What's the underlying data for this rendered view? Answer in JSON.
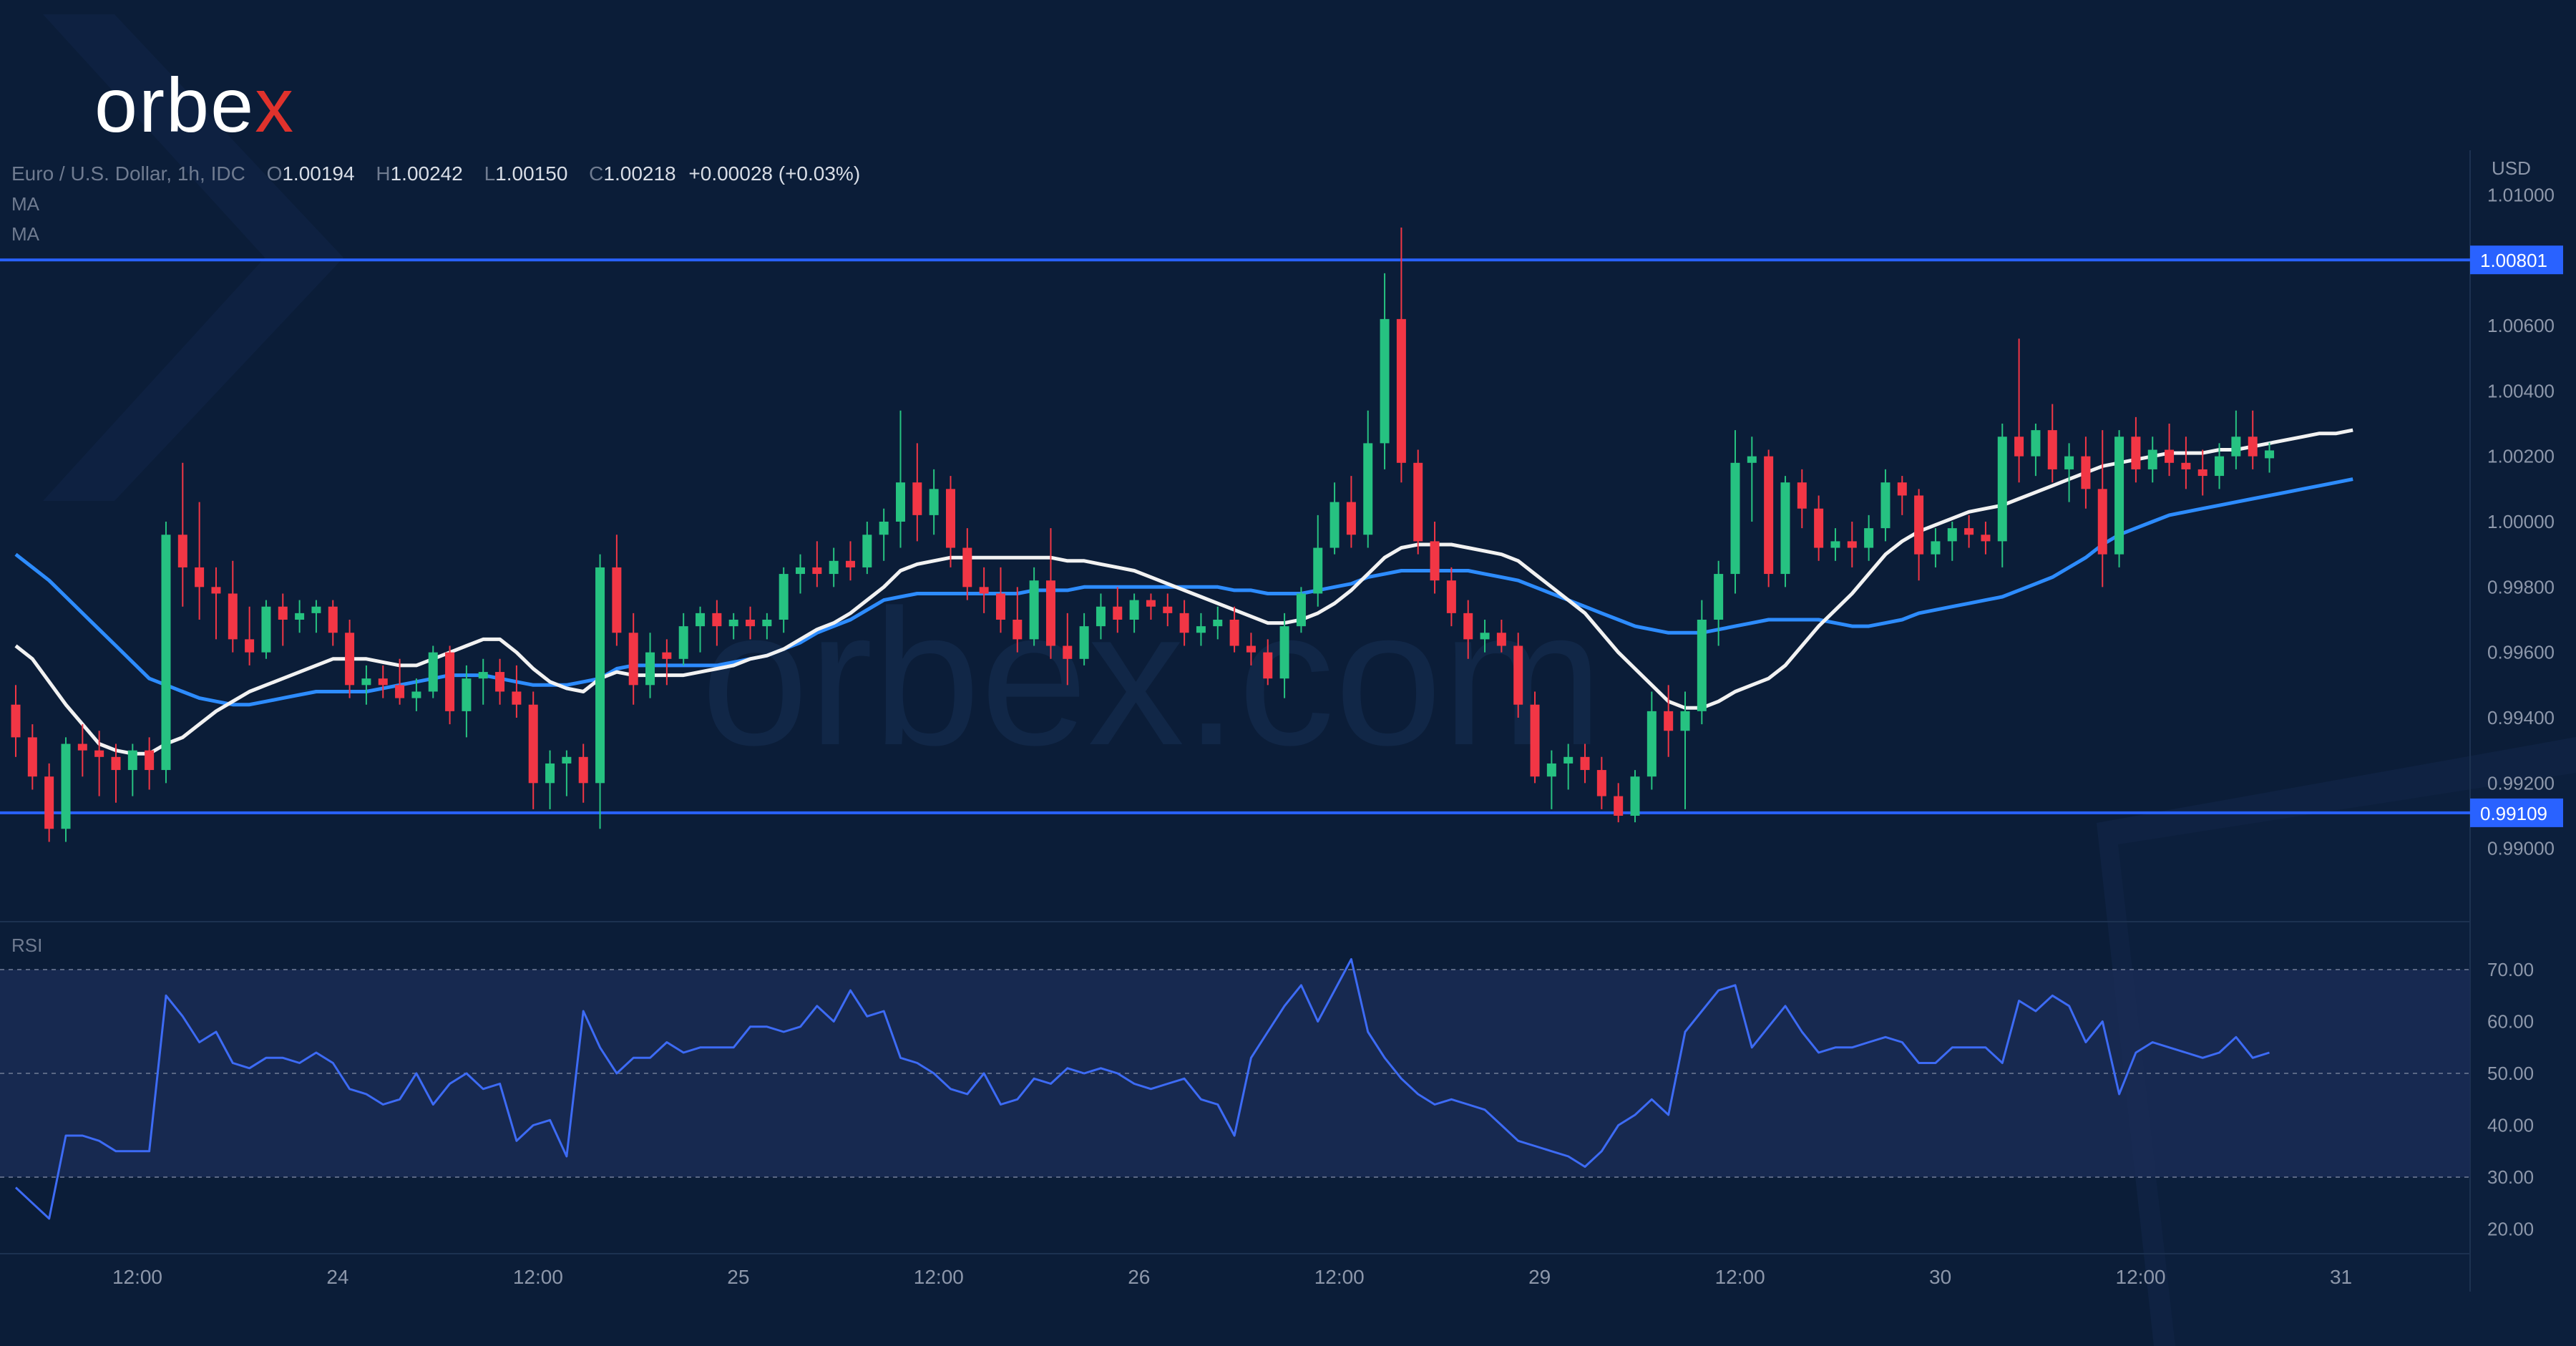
{
  "branding": {
    "logo_text": "orbe",
    "logo_x": "x",
    "accent_color": "#e0322c"
  },
  "legend": {
    "symbol": "Euro / U.S. Dollar, 1h, IDC",
    "o_label": "O",
    "open": "1.00194",
    "h_label": "H",
    "high": "1.00242",
    "l_label": "L",
    "low": "1.00150",
    "c_label": "C",
    "close": "1.00218",
    "change": "+0.00028 (+0.03%)",
    "ma1_label": "MA",
    "ma2_label": "MA"
  },
  "watermark": "orbex.com",
  "chart_data": {
    "type": "candlestick",
    "currency_label": "USD",
    "price_axis": {
      "range": [
        0.9888,
        1.0118
      ],
      "ticks": [
        "1.01000",
        "1.00600",
        "1.00400",
        "1.00200",
        "1.00000",
        "0.99800",
        "0.99600",
        "0.99400",
        "0.99200",
        "0.99000"
      ],
      "tick_values": [
        1.01,
        1.006,
        1.004,
        1.002,
        1.0,
        0.998,
        0.996,
        0.994,
        0.992,
        0.99
      ]
    },
    "horizontal_levels": [
      {
        "label": "1.00801",
        "value": 1.00801,
        "color": "#2962ff"
      },
      {
        "label": "0.99109",
        "value": 0.99109,
        "color": "#2962ff"
      }
    ],
    "time_axis": {
      "labels": [
        "12:00",
        "24",
        "12:00",
        "25",
        "12:00",
        "26",
        "12:00",
        "29",
        "12:00",
        "30",
        "12:00",
        "31"
      ],
      "label_candle_index": [
        6,
        18,
        30,
        42,
        54,
        66,
        78,
        90,
        102,
        114,
        126,
        138
      ]
    },
    "up_color": "#26c281",
    "down_color": "#f23645",
    "candles": [
      [
        0.9944,
        0.995,
        0.9928,
        0.9934
      ],
      [
        0.9934,
        0.9938,
        0.9918,
        0.9922
      ],
      [
        0.9922,
        0.9926,
        0.9902,
        0.9906
      ],
      [
        0.9906,
        0.9934,
        0.9902,
        0.9932
      ],
      [
        0.9932,
        0.9938,
        0.9922,
        0.993
      ],
      [
        0.993,
        0.9936,
        0.9916,
        0.9928
      ],
      [
        0.9928,
        0.9932,
        0.9914,
        0.9924
      ],
      [
        0.9924,
        0.9932,
        0.9916,
        0.993
      ],
      [
        0.993,
        0.9934,
        0.9918,
        0.9924
      ],
      [
        0.9924,
        1.0,
        0.992,
        0.9996
      ],
      [
        0.9996,
        1.0018,
        0.9974,
        0.9986
      ],
      [
        0.9986,
        1.0006,
        0.997,
        0.998
      ],
      [
        0.998,
        0.9986,
        0.9964,
        0.9978
      ],
      [
        0.9978,
        0.9988,
        0.996,
        0.9964
      ],
      [
        0.9964,
        0.9974,
        0.9956,
        0.996
      ],
      [
        0.996,
        0.9976,
        0.9958,
        0.9974
      ],
      [
        0.9974,
        0.9978,
        0.9962,
        0.997
      ],
      [
        0.997,
        0.9976,
        0.9966,
        0.9972
      ],
      [
        0.9972,
        0.9976,
        0.9966,
        0.9974
      ],
      [
        0.9974,
        0.9976,
        0.9962,
        0.9966
      ],
      [
        0.9966,
        0.997,
        0.9946,
        0.995
      ],
      [
        0.995,
        0.9956,
        0.9944,
        0.9952
      ],
      [
        0.9952,
        0.9956,
        0.9946,
        0.995
      ],
      [
        0.995,
        0.9958,
        0.9944,
        0.9946
      ],
      [
        0.9946,
        0.9952,
        0.9942,
        0.9948
      ],
      [
        0.9948,
        0.9962,
        0.9946,
        0.996
      ],
      [
        0.996,
        0.9962,
        0.9938,
        0.9942
      ],
      [
        0.9942,
        0.9956,
        0.9934,
        0.9952
      ],
      [
        0.9952,
        0.9958,
        0.9944,
        0.9954
      ],
      [
        0.9954,
        0.9958,
        0.9944,
        0.9948
      ],
      [
        0.9948,
        0.9956,
        0.994,
        0.9944
      ],
      [
        0.9944,
        0.9948,
        0.9912,
        0.992
      ],
      [
        0.992,
        0.993,
        0.9912,
        0.9926
      ],
      [
        0.9926,
        0.993,
        0.9916,
        0.9928
      ],
      [
        0.9928,
        0.9932,
        0.9914,
        0.992
      ],
      [
        0.992,
        0.999,
        0.9906,
        0.9986
      ],
      [
        0.9986,
        0.9996,
        0.9962,
        0.9966
      ],
      [
        0.9966,
        0.9972,
        0.9944,
        0.995
      ],
      [
        0.995,
        0.9966,
        0.9946,
        0.996
      ],
      [
        0.996,
        0.9964,
        0.995,
        0.9958
      ],
      [
        0.9958,
        0.9972,
        0.9956,
        0.9968
      ],
      [
        0.9968,
        0.9974,
        0.996,
        0.9972
      ],
      [
        0.9972,
        0.9976,
        0.9962,
        0.9968
      ],
      [
        0.9968,
        0.9972,
        0.9964,
        0.997
      ],
      [
        0.997,
        0.9974,
        0.9964,
        0.9968
      ],
      [
        0.9968,
        0.9972,
        0.9964,
        0.997
      ],
      [
        0.997,
        0.9986,
        0.9966,
        0.9984
      ],
      [
        0.9984,
        0.999,
        0.9978,
        0.9986
      ],
      [
        0.9986,
        0.9994,
        0.998,
        0.9984
      ],
      [
        0.9984,
        0.9992,
        0.998,
        0.9988
      ],
      [
        0.9988,
        0.9994,
        0.9982,
        0.9986
      ],
      [
        0.9986,
        1.0,
        0.9984,
        0.9996
      ],
      [
        0.9996,
        1.0004,
        0.9988,
        1.0
      ],
      [
        1.0,
        1.0034,
        0.9992,
        1.0012
      ],
      [
        1.0012,
        1.0024,
        0.9994,
        1.0002
      ],
      [
        1.0002,
        1.0016,
        0.9996,
        1.001
      ],
      [
        1.001,
        1.0014,
        0.9986,
        0.9992
      ],
      [
        0.9992,
        0.9998,
        0.9976,
        0.998
      ],
      [
        0.998,
        0.9986,
        0.9972,
        0.9978
      ],
      [
        0.9978,
        0.9986,
        0.9966,
        0.997
      ],
      [
        0.997,
        0.998,
        0.996,
        0.9964
      ],
      [
        0.9964,
        0.9986,
        0.9962,
        0.9982
      ],
      [
        0.9982,
        0.9998,
        0.9958,
        0.9962
      ],
      [
        0.9962,
        0.9972,
        0.995,
        0.9958
      ],
      [
        0.9958,
        0.9972,
        0.9956,
        0.9968
      ],
      [
        0.9968,
        0.9978,
        0.9964,
        0.9974
      ],
      [
        0.9974,
        0.998,
        0.9966,
        0.997
      ],
      [
        0.997,
        0.9978,
        0.9966,
        0.9976
      ],
      [
        0.9976,
        0.9978,
        0.997,
        0.9974
      ],
      [
        0.9974,
        0.9978,
        0.9968,
        0.9972
      ],
      [
        0.9972,
        0.9976,
        0.9962,
        0.9966
      ],
      [
        0.9966,
        0.9972,
        0.9962,
        0.9968
      ],
      [
        0.9968,
        0.9974,
        0.9964,
        0.997
      ],
      [
        0.997,
        0.9974,
        0.996,
        0.9962
      ],
      [
        0.9962,
        0.9966,
        0.9956,
        0.996
      ],
      [
        0.996,
        0.9964,
        0.995,
        0.9952
      ],
      [
        0.9952,
        0.9972,
        0.9946,
        0.9968
      ],
      [
        0.9968,
        0.998,
        0.9966,
        0.9978
      ],
      [
        0.9978,
        1.0002,
        0.9974,
        0.9992
      ],
      [
        0.9992,
        1.0012,
        0.999,
        1.0006
      ],
      [
        1.0006,
        1.0014,
        0.9992,
        0.9996
      ],
      [
        0.9996,
        1.0034,
        0.9992,
        1.0024
      ],
      [
        1.0024,
        1.0076,
        1.0016,
        1.0062
      ],
      [
        1.0062,
        1.009,
        1.0012,
        1.0018
      ],
      [
        1.0018,
        1.0022,
        0.999,
        0.9994
      ],
      [
        0.9994,
        1.0,
        0.9978,
        0.9982
      ],
      [
        0.9982,
        0.9986,
        0.9968,
        0.9972
      ],
      [
        0.9972,
        0.9976,
        0.9958,
        0.9964
      ],
      [
        0.9964,
        0.997,
        0.996,
        0.9966
      ],
      [
        0.9966,
        0.997,
        0.996,
        0.9962
      ],
      [
        0.9962,
        0.9966,
        0.994,
        0.9944
      ],
      [
        0.9944,
        0.9948,
        0.992,
        0.9922
      ],
      [
        0.9922,
        0.993,
        0.9912,
        0.9926
      ],
      [
        0.9926,
        0.9932,
        0.9918,
        0.9928
      ],
      [
        0.9928,
        0.9932,
        0.992,
        0.9924
      ],
      [
        0.9924,
        0.9928,
        0.9912,
        0.9916
      ],
      [
        0.9916,
        0.992,
        0.9908,
        0.991
      ],
      [
        0.991,
        0.9924,
        0.9908,
        0.9922
      ],
      [
        0.9922,
        0.9948,
        0.9918,
        0.9942
      ],
      [
        0.9942,
        0.995,
        0.9928,
        0.9936
      ],
      [
        0.9936,
        0.9948,
        0.9912,
        0.9942
      ],
      [
        0.9942,
        0.9976,
        0.9938,
        0.997
      ],
      [
        0.997,
        0.9988,
        0.9962,
        0.9984
      ],
      [
        0.9984,
        1.0028,
        0.9978,
        1.0018
      ],
      [
        1.0018,
        1.0026,
        1.0,
        1.002
      ],
      [
        1.002,
        1.0022,
        0.998,
        0.9984
      ],
      [
        0.9984,
        1.0014,
        0.998,
        1.0012
      ],
      [
        1.0012,
        1.0016,
        0.9998,
        1.0004
      ],
      [
        1.0004,
        1.0008,
        0.9988,
        0.9992
      ],
      [
        0.9992,
        0.9998,
        0.9988,
        0.9994
      ],
      [
        0.9994,
        1.0,
        0.9986,
        0.9992
      ],
      [
        0.9992,
        1.0002,
        0.9988,
        0.9998
      ],
      [
        0.9998,
        1.0016,
        0.9994,
        1.0012
      ],
      [
        1.0012,
        1.0014,
        1.0002,
        1.0008
      ],
      [
        1.0008,
        1.001,
        0.9982,
        0.999
      ],
      [
        0.999,
        0.9998,
        0.9986,
        0.9994
      ],
      [
        0.9994,
        1.0,
        0.9988,
        0.9998
      ],
      [
        0.9998,
        1.0002,
        0.9992,
        0.9996
      ],
      [
        0.9996,
        1.0,
        0.999,
        0.9994
      ],
      [
        0.9994,
        1.003,
        0.9986,
        1.0026
      ],
      [
        1.0026,
        1.0056,
        1.0012,
        1.002
      ],
      [
        1.002,
        1.003,
        1.0014,
        1.0028
      ],
      [
        1.0028,
        1.0036,
        1.0012,
        1.0016
      ],
      [
        1.0016,
        1.0024,
        1.0006,
        1.002
      ],
      [
        1.002,
        1.0026,
        1.0004,
        1.001
      ],
      [
        1.001,
        1.0028,
        0.998,
        0.999
      ],
      [
        0.999,
        1.0028,
        0.9986,
        1.0026
      ],
      [
        1.0026,
        1.0032,
        1.0012,
        1.0016
      ],
      [
        1.0016,
        1.0026,
        1.0012,
        1.0022
      ],
      [
        1.0022,
        1.003,
        1.0014,
        1.0018
      ],
      [
        1.0018,
        1.0026,
        1.001,
        1.0016
      ],
      [
        1.0016,
        1.0022,
        1.0008,
        1.0014
      ],
      [
        1.0014,
        1.0024,
        1.001,
        1.002
      ],
      [
        1.002,
        1.0034,
        1.0016,
        1.0026
      ],
      [
        1.0026,
        1.0034,
        1.0016,
        1.002
      ],
      [
        1.00194,
        1.00242,
        1.0015,
        1.00218
      ]
    ],
    "rsi_axis": {
      "range": [
        13,
        78
      ],
      "ticks": [
        "70.00",
        "60.00",
        "50.00",
        "40.00",
        "30.00",
        "20.00"
      ],
      "tick_values": [
        70,
        60,
        50,
        40,
        30,
        20
      ],
      "band": [
        30,
        70
      ]
    },
    "rsi": [
      28,
      25,
      22,
      38,
      38,
      37,
      35,
      35,
      35,
      65,
      61,
      56,
      58,
      52,
      51,
      53,
      53,
      52,
      54,
      52,
      47,
      46,
      44,
      45,
      50,
      44,
      48,
      50,
      47,
      48,
      37,
      40,
      41,
      34,
      62,
      55,
      50,
      53,
      53,
      56,
      54,
      55,
      55,
      55,
      59,
      59,
      58,
      59,
      63,
      60,
      66,
      61,
      62,
      53,
      52,
      50,
      47,
      46,
      50,
      44,
      45,
      49,
      48,
      51,
      50,
      51,
      50,
      48,
      47,
      48,
      49,
      45,
      44,
      38,
      53,
      58,
      63,
      67,
      60,
      66,
      72,
      58,
      53,
      49,
      46,
      44,
      45,
      44,
      43,
      40,
      37,
      36,
      35,
      34,
      32,
      35,
      40,
      42,
      45,
      42,
      58,
      62,
      66,
      67,
      55,
      59,
      63,
      58,
      54,
      55,
      55,
      56,
      57,
      56,
      52,
      52,
      55,
      55,
      55,
      52,
      64,
      62,
      65,
      63,
      56,
      60,
      46,
      54,
      56,
      55,
      54,
      53,
      54,
      57,
      53,
      54
    ],
    "ma_white": {
      "name": "MA",
      "color": "#f2f2f2",
      "values": [
        0.9962,
        0.9958,
        0.9951,
        0.9944,
        0.9938,
        0.9932,
        0.993,
        0.9929,
        0.9929,
        0.9932,
        0.9934,
        0.9938,
        0.9942,
        0.9945,
        0.9948,
        0.995,
        0.9952,
        0.9954,
        0.9956,
        0.9958,
        0.9958,
        0.9958,
        0.9957,
        0.9956,
        0.9956,
        0.9958,
        0.996,
        0.9962,
        0.9964,
        0.9964,
        0.996,
        0.9955,
        0.9951,
        0.9949,
        0.9948,
        0.9952,
        0.9954,
        0.9953,
        0.9953,
        0.9953,
        0.9953,
        0.9954,
        0.9955,
        0.9956,
        0.9958,
        0.9959,
        0.9961,
        0.9964,
        0.9967,
        0.9969,
        0.9972,
        0.9976,
        0.998,
        0.9985,
        0.9987,
        0.9988,
        0.9989,
        0.9989,
        0.9989,
        0.9989,
        0.9989,
        0.9989,
        0.9989,
        0.9988,
        0.9988,
        0.9987,
        0.9986,
        0.9985,
        0.9983,
        0.9981,
        0.9979,
        0.9977,
        0.9975,
        0.9973,
        0.9971,
        0.9969,
        0.9969,
        0.997,
        0.9972,
        0.9975,
        0.9979,
        0.9984,
        0.9989,
        0.9992,
        0.9993,
        0.9993,
        0.9993,
        0.9992,
        0.9991,
        0.999,
        0.9988,
        0.9984,
        0.998,
        0.9976,
        0.9972,
        0.9966,
        0.996,
        0.9955,
        0.995,
        0.9945,
        0.9943,
        0.9943,
        0.9945,
        0.9948,
        0.995,
        0.9952,
        0.9956,
        0.9962,
        0.9968,
        0.9973,
        0.9978,
        0.9984,
        0.999,
        0.9994,
        0.9997,
        0.9999,
        1.0001,
        1.0003,
        1.0004,
        1.0005,
        1.0007,
        1.0009,
        1.0011,
        1.0013,
        1.0015,
        1.0017,
        1.0018,
        1.0019,
        1.002,
        1.0021,
        1.0021,
        1.0021,
        1.0022,
        1.0022,
        1.0023,
        1.0024,
        1.0025,
        1.0026,
        1.0027,
        1.0027,
        1.0028
      ]
    },
    "ma_blue": {
      "name": "MA",
      "color": "#2d8cff",
      "values": [
        0.999,
        0.9986,
        0.9982,
        0.9977,
        0.9972,
        0.9967,
        0.9962,
        0.9957,
        0.9952,
        0.995,
        0.9948,
        0.9946,
        0.9945,
        0.9944,
        0.9944,
        0.9945,
        0.9946,
        0.9947,
        0.9948,
        0.9948,
        0.9948,
        0.9948,
        0.9949,
        0.995,
        0.9951,
        0.9952,
        0.9953,
        0.9953,
        0.9953,
        0.9952,
        0.9951,
        0.995,
        0.995,
        0.995,
        0.9951,
        0.9952,
        0.9955,
        0.9956,
        0.9956,
        0.9956,
        0.9956,
        0.9956,
        0.9956,
        0.9957,
        0.9958,
        0.9959,
        0.9961,
        0.9963,
        0.9966,
        0.9968,
        0.997,
        0.9973,
        0.9976,
        0.9977,
        0.9978,
        0.9978,
        0.9978,
        0.9978,
        0.9978,
        0.9978,
        0.9978,
        0.9979,
        0.9979,
        0.9979,
        0.998,
        0.998,
        0.998,
        0.998,
        0.998,
        0.998,
        0.998,
        0.998,
        0.998,
        0.9979,
        0.9979,
        0.9978,
        0.9978,
        0.9978,
        0.9979,
        0.998,
        0.9981,
        0.9983,
        0.9984,
        0.9985,
        0.9985,
        0.9985,
        0.9985,
        0.9985,
        0.9984,
        0.9983,
        0.9982,
        0.998,
        0.9978,
        0.9976,
        0.9974,
        0.9972,
        0.997,
        0.9968,
        0.9967,
        0.9966,
        0.9966,
        0.9966,
        0.9967,
        0.9968,
        0.9969,
        0.997,
        0.997,
        0.997,
        0.997,
        0.9969,
        0.9968,
        0.9968,
        0.9969,
        0.997,
        0.9972,
        0.9973,
        0.9974,
        0.9975,
        0.9976,
        0.9977,
        0.9979,
        0.9981,
        0.9983,
        0.9986,
        0.9989,
        0.9993,
        0.9996,
        0.9998,
        1.0,
        1.0002,
        1.0003,
        1.0004,
        1.0005,
        1.0006,
        1.0007,
        1.0008,
        1.0009,
        1.001,
        1.0011,
        1.0012,
        1.0013
      ]
    }
  }
}
